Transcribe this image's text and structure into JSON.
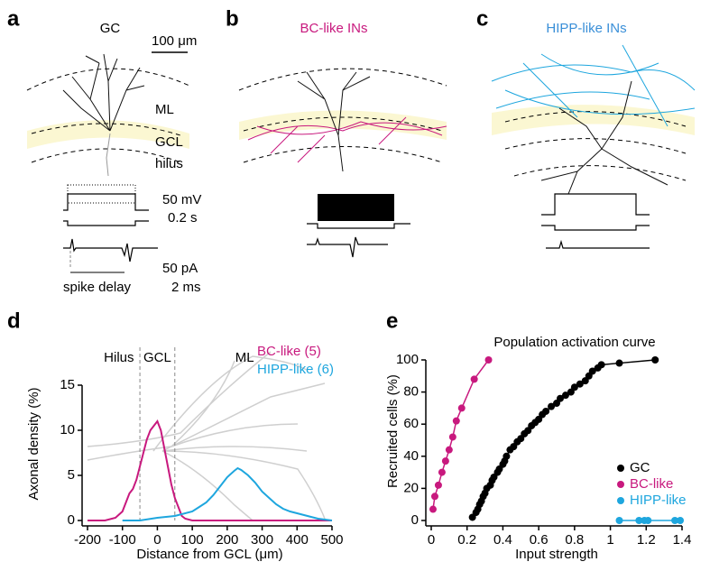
{
  "figure": {
    "panels": {
      "a": "a",
      "b": "b",
      "c": "c",
      "d": "d",
      "e": "e"
    },
    "a_title": "GC",
    "b_title": "BC-like INs",
    "c_title": "HIPP-like INs",
    "scale_bar": "100 μm",
    "layers": {
      "ml": "ML",
      "gcl": "GCL",
      "hilus": "hilus"
    },
    "voltage_scale": "50 mV",
    "time_scale": "0.2 s",
    "current_scale": "50 pA",
    "short_time_scale": "2 ms",
    "spike_delay": "spike delay"
  },
  "chart_data": [
    {
      "type": "line",
      "xlabel": "Distance from GCL (μm)",
      "ylabel": "Axonal density (%)",
      "xlim": [
        -200,
        500
      ],
      "xticks": [
        -200,
        -100,
        0,
        100,
        200,
        300,
        400,
        500
      ],
      "ylim": [
        0,
        15
      ],
      "yticks": [
        0,
        5,
        10,
        15
      ],
      "regions": [
        "Hilus",
        "GCL",
        "ML"
      ],
      "region_bounds": [
        -50,
        50
      ],
      "series": [
        {
          "name": "BC-like (5)",
          "color": "#c8197e",
          "x": [
            -200,
            -150,
            -120,
            -100,
            -90,
            -80,
            -70,
            -60,
            -50,
            -40,
            -30,
            -20,
            -10,
            0,
            10,
            20,
            30,
            40,
            50,
            60,
            70,
            80,
            100,
            200,
            300,
            400,
            500
          ],
          "values": [
            0,
            0,
            0.3,
            1,
            2,
            3,
            3.5,
            4.5,
            6,
            7.5,
            9,
            10,
            10.5,
            11,
            10,
            8,
            6,
            4,
            2.5,
            1.5,
            0.5,
            0.2,
            0,
            0,
            0,
            0,
            0
          ]
        },
        {
          "name": "HIPP-like (6)",
          "color": "#1ea6de",
          "x": [
            -100,
            -50,
            0,
            50,
            100,
            120,
            140,
            160,
            180,
            200,
            220,
            230,
            240,
            260,
            280,
            300,
            320,
            340,
            360,
            380,
            400,
            420,
            440,
            460,
            480,
            500
          ],
          "values": [
            0,
            0,
            0.3,
            0.5,
            1,
            1.5,
            2,
            2.8,
            3.8,
            4.8,
            5.5,
            5.8,
            5.6,
            5,
            4.2,
            3.2,
            2.5,
            1.8,
            1.3,
            1,
            0.8,
            0.6,
            0.4,
            0.2,
            0.1,
            0
          ]
        }
      ]
    },
    {
      "type": "scatter",
      "title": "Population activation curve",
      "xlabel": "Input strength",
      "ylabel": "Recruited cells (%)",
      "xlim": [
        0,
        1.4
      ],
      "xticks": [
        0,
        0.2,
        0.4,
        0.6,
        0.8,
        1,
        1.2,
        1.4
      ],
      "ylim": [
        0,
        100
      ],
      "yticks": [
        0,
        20,
        40,
        60,
        80,
        100
      ],
      "legend": "lower right",
      "series": [
        {
          "name": "GC",
          "color": "#000000",
          "x": [
            0.23,
            0.25,
            0.26,
            0.27,
            0.28,
            0.29,
            0.3,
            0.31,
            0.33,
            0.34,
            0.35,
            0.37,
            0.38,
            0.4,
            0.41,
            0.42,
            0.44,
            0.46,
            0.48,
            0.5,
            0.52,
            0.54,
            0.56,
            0.58,
            0.6,
            0.62,
            0.64,
            0.67,
            0.7,
            0.72,
            0.75,
            0.78,
            0.8,
            0.83,
            0.86,
            0.88,
            0.9,
            0.93,
            0.95,
            1.05,
            1.25
          ],
          "values": [
            2,
            5,
            7,
            10,
            12,
            15,
            17,
            20,
            22,
            25,
            27,
            30,
            32,
            35,
            37,
            40,
            44,
            46,
            49,
            51,
            54,
            56,
            59,
            61,
            63,
            66,
            68,
            71,
            73,
            76,
            78,
            80,
            83,
            85,
            87,
            90,
            93,
            95,
            97,
            98,
            100
          ]
        },
        {
          "name": "BC-like",
          "color": "#c8197e",
          "x": [
            0.01,
            0.02,
            0.04,
            0.06,
            0.08,
            0.1,
            0.12,
            0.14,
            0.17,
            0.24,
            0.32
          ],
          "values": [
            7,
            15,
            22,
            30,
            37,
            44,
            52,
            62,
            70,
            88,
            100
          ]
        },
        {
          "name": "HIPP-like",
          "color": "#1ea6de",
          "x": [
            1.05,
            1.16,
            1.19,
            1.21,
            1.36,
            1.39
          ],
          "values": [
            0,
            0,
            0,
            0,
            0,
            0
          ]
        }
      ]
    }
  ]
}
